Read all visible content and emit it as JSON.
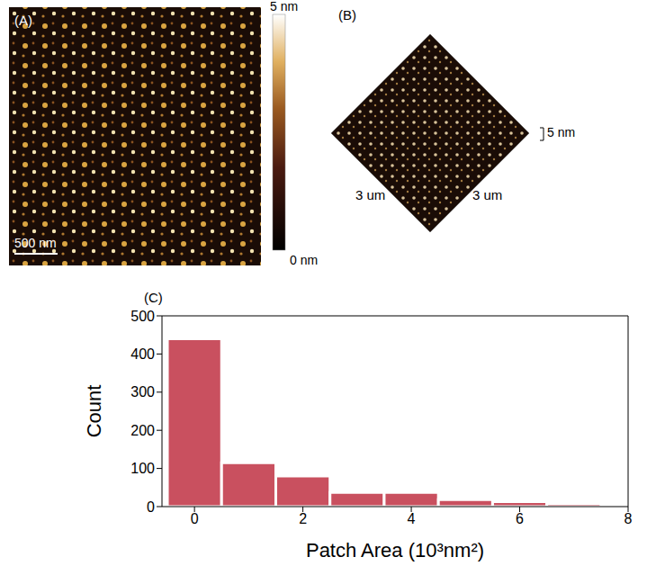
{
  "panels": {
    "A": {
      "label": "(A)",
      "scale_bar": "500 nm",
      "colorbar": {
        "max": "5 nm",
        "min": "0 nm"
      }
    },
    "B": {
      "label": "(B)",
      "x_label": "3 um",
      "y_label": "3 um",
      "z_label": "5 nm"
    }
  },
  "chart_data": {
    "type": "histogram",
    "title": "(C)",
    "x_label": "Patch Area (10³nm²)",
    "y_label": "Count",
    "bins": [
      -0.5,
      0.5,
      1.5,
      2.5,
      3.5,
      4.5,
      5.5,
      6.5,
      7.5
    ],
    "values": [
      440,
      115,
      80,
      37,
      37,
      18,
      13,
      8
    ],
    "color": "#c9505f",
    "xlim": [
      -0.6,
      8
    ],
    "xticks": [
      0,
      2,
      4,
      6,
      8
    ],
    "ylim": [
      0,
      500
    ],
    "yticks": [
      0,
      100,
      200,
      300,
      400,
      500
    ],
    "grid": false
  }
}
